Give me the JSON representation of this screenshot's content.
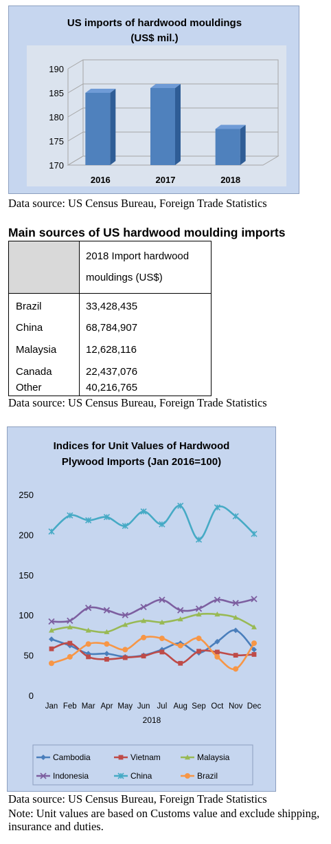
{
  "chart_data": [
    {
      "type": "bar",
      "title_lines": [
        "US imports of hardwood mouldings",
        "(US$ mil.)"
      ],
      "categories": [
        "2016",
        "2017",
        "2018"
      ],
      "values": [
        185,
        186,
        177.5
      ],
      "ylim": [
        170,
        190
      ],
      "yticks": [
        "170",
        "175",
        "180",
        "185",
        "190"
      ],
      "grid": true,
      "bar_color": "#4f81bd"
    },
    {
      "type": "line",
      "title_lines": [
        "Indices for Unit Values of Hardwood",
        "Plywood Imports (Jan 2016=100)"
      ],
      "categories": [
        "Jan",
        "Feb",
        "Mar",
        "Apr",
        "May",
        "Jun",
        "Jul",
        "Aug",
        "Sep",
        "Oct",
        "Nov",
        "Dec"
      ],
      "xlabel": "2018",
      "ylim": [
        0,
        250
      ],
      "yticks": [
        "0",
        "50",
        "100",
        "150",
        "200",
        "250"
      ],
      "grid": false,
      "legend_position": "bottom",
      "series": [
        {
          "name": "Cambodia",
          "color": "#4a7ebb",
          "marker": "diamond",
          "values": [
            70,
            62,
            52,
            52,
            48,
            50,
            57,
            65,
            53,
            67,
            81,
            57
          ]
        },
        {
          "name": "Vietnam",
          "color": "#be4b48",
          "marker": "square",
          "values": [
            58,
            65,
            48,
            45,
            47,
            49,
            54,
            40,
            55,
            54,
            50,
            51
          ]
        },
        {
          "name": "Malaysia",
          "color": "#98b954",
          "marker": "triangle",
          "values": [
            81,
            85,
            81,
            79,
            88,
            93,
            91,
            95,
            101,
            101,
            97,
            85
          ]
        },
        {
          "name": "Indonesia",
          "color": "#7d5fa0",
          "marker": "x",
          "values": [
            92,
            93,
            109,
            106,
            100,
            110,
            119,
            106,
            108,
            119,
            115,
            120
          ]
        },
        {
          "name": "China",
          "color": "#46aac5",
          "marker": "star",
          "values": [
            204,
            224,
            218,
            222,
            211,
            229,
            213,
            236,
            194,
            234,
            223,
            201
          ]
        },
        {
          "name": "Brazil",
          "color": "#f79646",
          "marker": "circle",
          "values": [
            40,
            48,
            64,
            64,
            57,
            72,
            71,
            62,
            71,
            48,
            33,
            65
          ]
        }
      ]
    }
  ],
  "source_note_1": "Data source: US Census Bureau, Foreign Trade Statistics",
  "table": {
    "title": "Main sources of US hardwood moulding imports",
    "header_line1": "2018 Import hardwood",
    "header_line2": "mouldings (US$)",
    "rows": [
      {
        "country": "Brazil",
        "value": "33,428,435"
      },
      {
        "country": "China",
        "value": "68,784,907"
      },
      {
        "country": "Malaysia",
        "value": "12,628,116"
      },
      {
        "country": "Canada",
        "value": "22,437,076"
      },
      {
        "country": "Other",
        "value": "40,216,765"
      }
    ]
  },
  "source_note_2": "Data source: US Census Bureau, Foreign Trade Statistics",
  "source_note_3": "Data source: US Census Bureau, Foreign Trade Statistics",
  "footnote": "Note: Unit values are based on Customs value and exclude shipping, insurance and duties."
}
